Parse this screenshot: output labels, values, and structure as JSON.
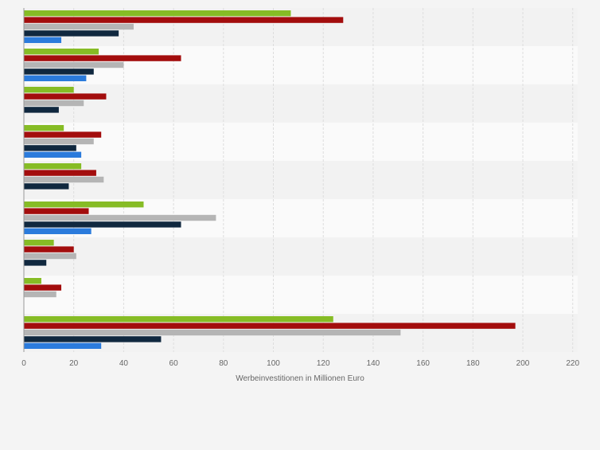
{
  "chart_data": {
    "type": "bar",
    "orientation": "horizontal",
    "categories": [
      "",
      "",
      "",
      "",
      "",
      "",
      "",
      "",
      ""
    ],
    "series": [
      {
        "color": "#86bc25",
        "values": [
          107,
          30,
          20,
          16,
          23,
          48,
          12,
          7,
          124
        ]
      },
      {
        "color": "#a30d0d",
        "values": [
          128,
          63,
          33,
          31,
          29,
          26,
          20,
          15,
          197
        ]
      },
      {
        "color": "#b5b5b5",
        "values": [
          44,
          40,
          24,
          28,
          32,
          77,
          21,
          13,
          151
        ]
      },
      {
        "color": "#10283f",
        "values": [
          38,
          28,
          14,
          21,
          18,
          63,
          9,
          0,
          55
        ]
      },
      {
        "color": "#2b7bdc",
        "values": [
          15,
          25,
          0,
          23,
          0,
          27,
          0,
          0,
          31
        ]
      }
    ],
    "xlabel": "Werbeinvestitionen in Millionen Euro",
    "xlim": [
      0,
      222
    ],
    "xticks": [
      "0",
      "20",
      "40",
      "60",
      "80",
      "100",
      "120",
      "140",
      "160",
      "180",
      "200",
      "220"
    ],
    "grid": true,
    "legend": "none"
  }
}
